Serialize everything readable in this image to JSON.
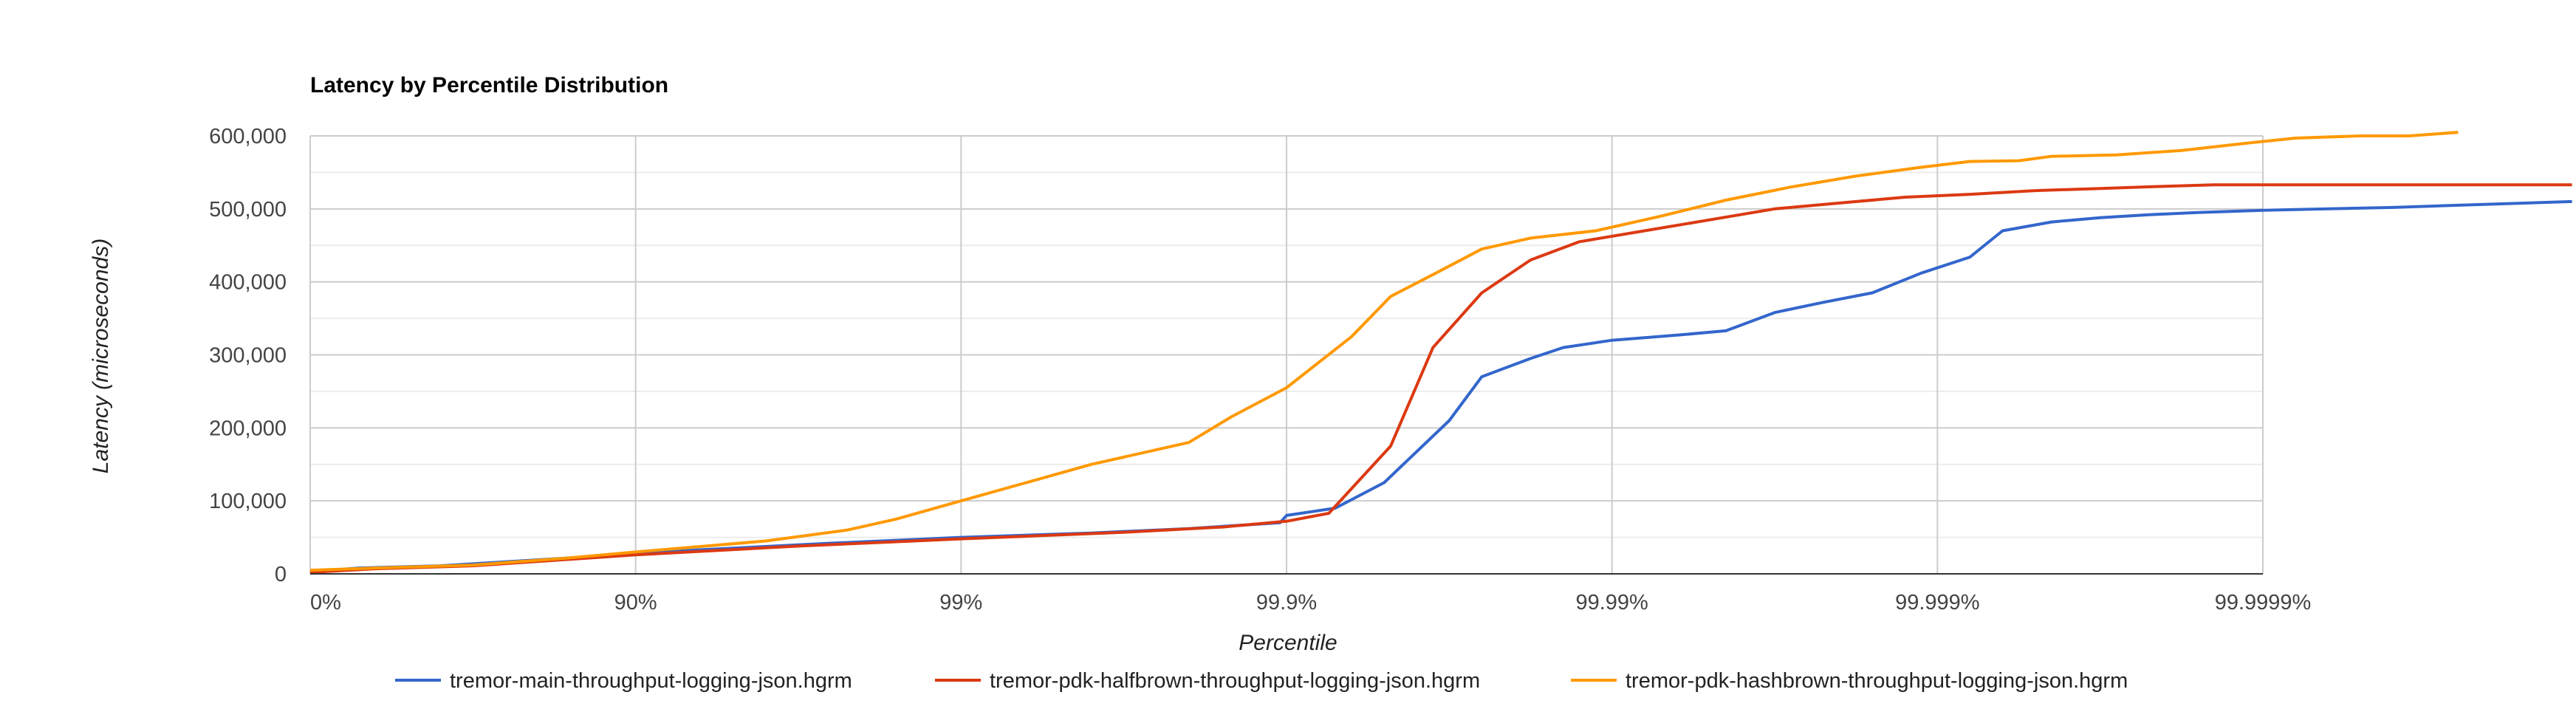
{
  "chart_data": {
    "type": "line",
    "title": "Latency by Percentile Distribution",
    "xlabel": "Percentile",
    "ylabel": "Latency (microseconds)",
    "x_scale": "log(1/(1-p))",
    "x_ticks": [
      "0%",
      "90%",
      "99%",
      "99.9%",
      "99.99%",
      "99.999%",
      "99.9999%"
    ],
    "y_ticks": [
      "0",
      "100,000",
      "200,000",
      "300,000",
      "400,000",
      "500,000",
      "600,000"
    ],
    "ylim": [
      0,
      600000
    ],
    "grid": true,
    "legend_position": "bottom",
    "series": [
      {
        "name": "tremor-main-throughput-logging-json.hgrm",
        "color": "#3366cc",
        "points": [
          [
            0,
            3000
          ],
          [
            0.15,
            8000
          ],
          [
            0.4,
            11000
          ],
          [
            0.8,
            22000
          ],
          [
            1.2,
            33000
          ],
          [
            1.6,
            42000
          ],
          [
            2.0,
            50000
          ],
          [
            2.4,
            56000
          ],
          [
            2.7,
            62000
          ],
          [
            2.98,
            70000
          ],
          [
            3.0,
            80000
          ],
          [
            3.15,
            90000
          ],
          [
            3.3,
            125000
          ],
          [
            3.5,
            210000
          ],
          [
            3.6,
            270000
          ],
          [
            3.75,
            295000
          ],
          [
            3.85,
            310000
          ],
          [
            4.0,
            320000
          ],
          [
            4.2,
            327000
          ],
          [
            4.35,
            333000
          ],
          [
            4.5,
            358000
          ],
          [
            4.65,
            372000
          ],
          [
            4.8,
            385000
          ],
          [
            4.95,
            412000
          ],
          [
            5.1,
            434000
          ],
          [
            5.2,
            470000
          ],
          [
            5.35,
            482000
          ],
          [
            5.5,
            488000
          ],
          [
            5.65,
            492000
          ],
          [
            5.8,
            495000
          ],
          [
            6.0,
            498000
          ],
          [
            6.2,
            500000
          ],
          [
            6.4,
            502000
          ],
          [
            6.6,
            505000
          ],
          [
            6.95,
            510000
          ]
        ]
      },
      {
        "name": "tremor-pdk-halfbrown-throughput-logging-json.hgrm",
        "color": "#dc3912",
        "points": [
          [
            0,
            2000
          ],
          [
            0.2,
            7000
          ],
          [
            0.5,
            11000
          ],
          [
            0.8,
            20000
          ],
          [
            1.0,
            26000
          ],
          [
            1.5,
            38000
          ],
          [
            2.0,
            48000
          ],
          [
            2.5,
            57000
          ],
          [
            2.8,
            64000
          ],
          [
            3.0,
            72000
          ],
          [
            3.13,
            83000
          ],
          [
            3.32,
            175000
          ],
          [
            3.45,
            310000
          ],
          [
            3.6,
            385000
          ],
          [
            3.75,
            430000
          ],
          [
            3.9,
            455000
          ],
          [
            4.1,
            470000
          ],
          [
            4.3,
            485000
          ],
          [
            4.5,
            500000
          ],
          [
            4.7,
            508000
          ],
          [
            4.9,
            516000
          ],
          [
            5.1,
            520000
          ],
          [
            5.3,
            525000
          ],
          [
            5.5,
            528000
          ],
          [
            5.7,
            531000
          ],
          [
            5.85,
            533000
          ],
          [
            6.0,
            533000
          ],
          [
            6.5,
            533000
          ],
          [
            6.95,
            533000
          ]
        ]
      },
      {
        "name": "tremor-pdk-hashbrown-throughput-logging-json.hgrm",
        "color": "#ff9900",
        "points": [
          [
            0,
            5000
          ],
          [
            0.2,
            8000
          ],
          [
            0.5,
            12000
          ],
          [
            0.8,
            22000
          ],
          [
            1.0,
            30000
          ],
          [
            1.4,
            45000
          ],
          [
            1.65,
            60000
          ],
          [
            1.8,
            75000
          ],
          [
            2.0,
            100000
          ],
          [
            2.2,
            125000
          ],
          [
            2.4,
            150000
          ],
          [
            2.7,
            180000
          ],
          [
            2.83,
            215000
          ],
          [
            3.0,
            255000
          ],
          [
            3.2,
            325000
          ],
          [
            3.32,
            380000
          ],
          [
            3.45,
            410000
          ],
          [
            3.6,
            445000
          ],
          [
            3.75,
            460000
          ],
          [
            3.95,
            470000
          ],
          [
            4.15,
            490000
          ],
          [
            4.35,
            512000
          ],
          [
            4.55,
            530000
          ],
          [
            4.75,
            545000
          ],
          [
            4.95,
            557000
          ],
          [
            5.1,
            565000
          ],
          [
            5.25,
            566000
          ],
          [
            5.35,
            572000
          ],
          [
            5.55,
            574000
          ],
          [
            5.75,
            580000
          ],
          [
            5.95,
            590000
          ],
          [
            6.1,
            597000
          ],
          [
            6.3,
            600000
          ],
          [
            6.45,
            600000
          ],
          [
            6.6,
            605000
          ]
        ]
      }
    ]
  }
}
